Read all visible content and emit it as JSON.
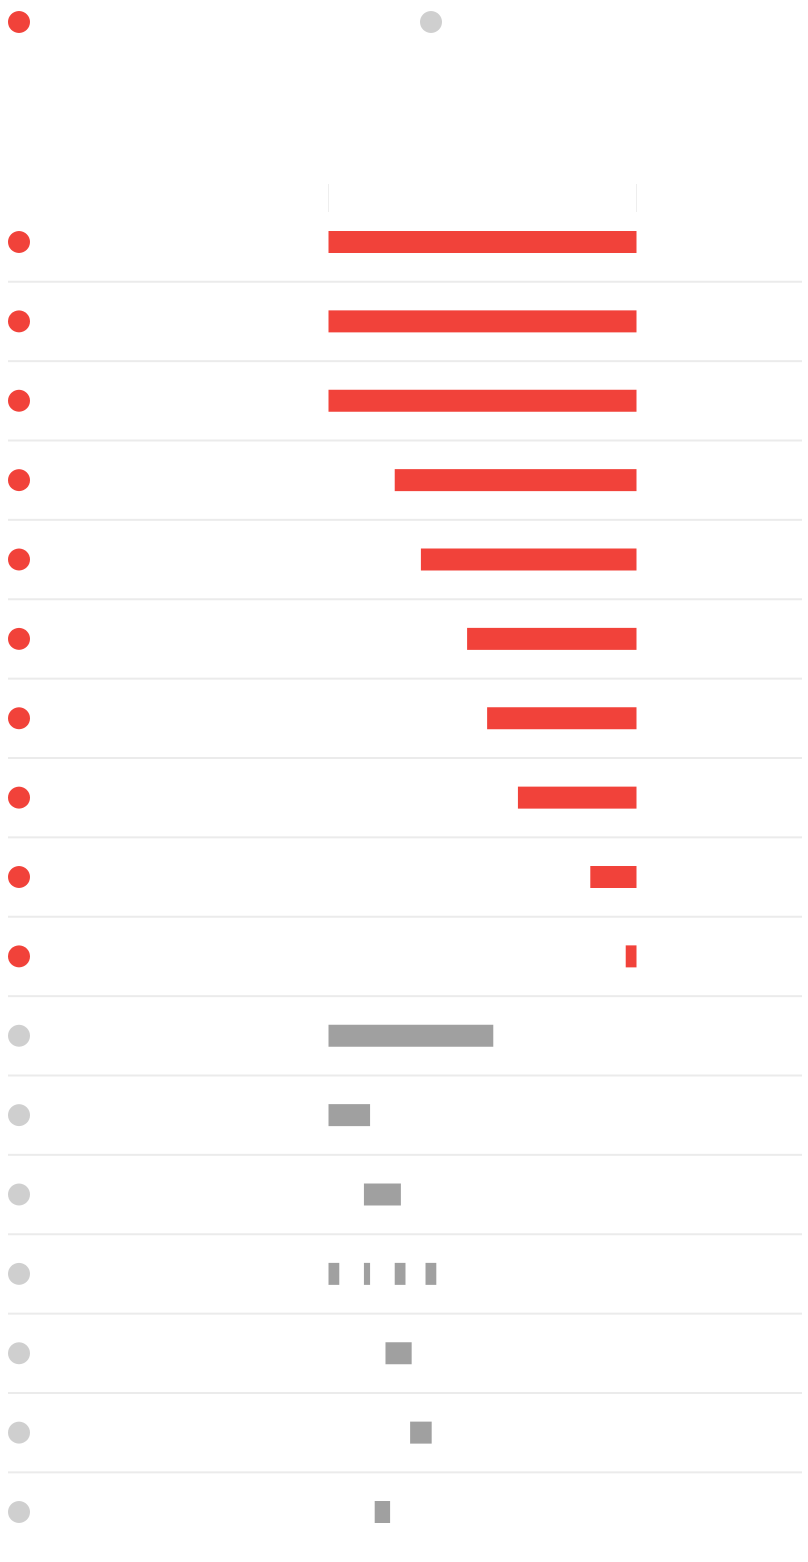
{
  "colors": {
    "accent": "#f1423a",
    "muted_dot": "#cfcfcf",
    "muted_bar": "#a0a0a0",
    "divider": "#ebebeb",
    "axis_tick": "#eeeeee"
  },
  "legend": {
    "items": [
      {
        "icon": "dot-icon",
        "color": "#f1423a"
      },
      {
        "icon": "dot-icon",
        "color": "#cfcfcf"
      }
    ]
  },
  "chart_data": {
    "type": "bar",
    "orientation": "horizontal",
    "grid": false,
    "xlim": [
      0,
      100
    ],
    "rows": [
      {
        "group": "red",
        "segments": [
          [
            0,
            100
          ]
        ]
      },
      {
        "group": "red",
        "segments": [
          [
            0,
            100
          ]
        ]
      },
      {
        "group": "red",
        "segments": [
          [
            0,
            100
          ]
        ]
      },
      {
        "group": "red",
        "segments": [
          [
            21.5,
            100
          ]
        ]
      },
      {
        "group": "red",
        "segments": [
          [
            30,
            100
          ]
        ]
      },
      {
        "group": "red",
        "segments": [
          [
            45,
            100
          ]
        ]
      },
      {
        "group": "red",
        "segments": [
          [
            51.5,
            100
          ]
        ]
      },
      {
        "group": "red",
        "segments": [
          [
            61.5,
            100
          ]
        ]
      },
      {
        "group": "red",
        "segments": [
          [
            85,
            100
          ]
        ]
      },
      {
        "group": "red",
        "segments": [
          [
            96.5,
            100
          ]
        ]
      },
      {
        "group": "gray",
        "segments": [
          [
            0,
            53.5
          ]
        ]
      },
      {
        "group": "gray",
        "segments": [
          [
            0,
            13.5
          ]
        ]
      },
      {
        "group": "gray",
        "segments": [
          [
            11.5,
            23.5
          ]
        ]
      },
      {
        "group": "gray",
        "segments": [
          [
            0,
            3.5
          ],
          [
            11.5,
            13.5
          ],
          [
            21.5,
            25
          ],
          [
            31.5,
            35
          ]
        ]
      },
      {
        "group": "gray",
        "segments": [
          [
            18.5,
            27
          ]
        ]
      },
      {
        "group": "gray",
        "segments": [
          [
            26.5,
            33.5
          ]
        ]
      },
      {
        "group": "gray",
        "segments": [
          [
            15,
            20
          ]
        ]
      }
    ]
  }
}
